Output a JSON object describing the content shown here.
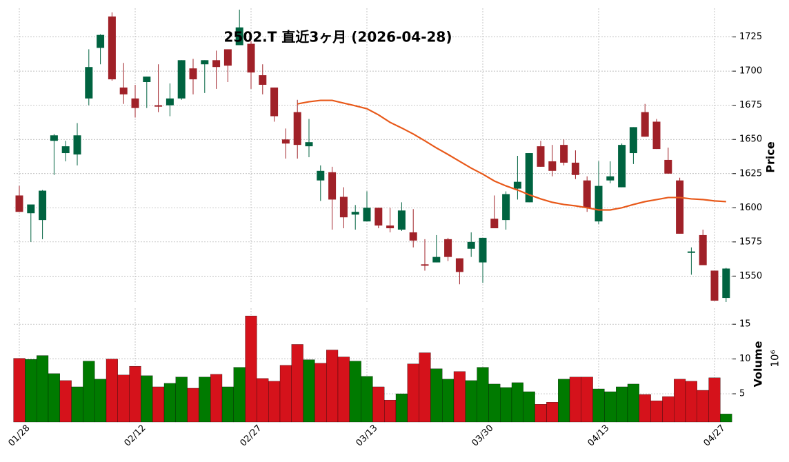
{
  "chart_data": {
    "type": "candlestick",
    "title": "2502.T 直近3ヶ月 (2026-04-28)",
    "ylabel": "Price",
    "categories": [
      "01/28",
      null,
      null,
      null,
      null,
      null,
      null,
      null,
      null,
      null,
      "02/12",
      null,
      null,
      null,
      null,
      null,
      null,
      null,
      null,
      null,
      "02/27",
      null,
      null,
      null,
      null,
      null,
      null,
      null,
      null,
      null,
      "03/13",
      null,
      null,
      null,
      null,
      null,
      null,
      null,
      null,
      null,
      "03/30",
      null,
      null,
      null,
      null,
      null,
      null,
      null,
      null,
      null,
      "04/13",
      null,
      null,
      null,
      null,
      null,
      null,
      null,
      null,
      null,
      "04/27",
      null
    ],
    "open": [
      1609,
      1596,
      1591,
      1649,
      1640,
      1639,
      1680,
      1717,
      1740,
      1688,
      1680,
      1692,
      1675,
      1675,
      1680,
      1702,
      1705,
      1708,
      1716,
      1719,
      1720,
      1697,
      1688,
      1650,
      1670,
      1645,
      1620,
      1626,
      1608,
      1595,
      1590,
      1600,
      1587,
      1584,
      1582,
      1558.6,
      1560,
      1577,
      1563,
      1570,
      1560,
      1592,
      1591,
      1614,
      1604,
      1645,
      1634,
      1646,
      1633,
      1620,
      1590,
      1620,
      1615,
      1640,
      1670,
      1663,
      1635,
      1620,
      1567,
      1580,
      1554,
      1534
    ],
    "high": [
      1616,
      1602,
      1613,
      1654,
      1649,
      1662,
      1716,
      1727,
      1743,
      1706,
      1690,
      1696,
      1705,
      1691,
      1708,
      1709,
      1708,
      1715,
      1716,
      1745,
      1722,
      1705,
      1688,
      1658,
      1679,
      1665,
      1631,
      1630,
      1615,
      1602,
      1612,
      1600,
      1600,
      1604,
      1599,
      1577,
      1580,
      1578,
      1563,
      1582,
      1578,
      1609,
      1612,
      1638,
      1640,
      1649,
      1646,
      1650,
      1642,
      1623,
      1634,
      1634,
      1647,
      1659,
      1676,
      1665,
      1644,
      1622,
      1571,
      1584,
      1554,
      1556
    ],
    "low": [
      1597,
      1575,
      1577,
      1624,
      1634,
      1631,
      1675,
      1705,
      1693,
      1676,
      1666,
      1673,
      1670,
      1667,
      1679,
      1683,
      1684,
      1687,
      1692,
      1719,
      1687,
      1683,
      1663,
      1636,
      1636,
      1637,
      1605,
      1584,
      1585,
      1584,
      1590,
      1585,
      1582,
      1583,
      1571,
      1554,
      1560,
      1561,
      1544,
      1564,
      1545,
      1585,
      1584,
      1606,
      1604,
      1630,
      1623,
      1631,
      1621,
      1597,
      1588,
      1618,
      1615,
      1632,
      1652,
      1643,
      1625,
      1581,
      1551,
      1558,
      1532,
      1531
    ],
    "close": [
      1597,
      1602.4,
      1612.5,
      1653,
      1645,
      1653,
      1703,
      1726.5,
      1694,
      1683,
      1673,
      1696,
      1674,
      1680,
      1708,
      1694,
      1708,
      1703,
      1704,
      1732,
      1699,
      1690,
      1667,
      1647,
      1646,
      1648,
      1627,
      1606,
      1593,
      1597,
      1600,
      1587,
      1585,
      1598,
      1576,
      1557.6,
      1564,
      1564,
      1553,
      1575,
      1578,
      1585,
      1610,
      1619,
      1640,
      1630,
      1627,
      1633,
      1624,
      1600,
      1616,
      1623,
      1646,
      1659,
      1652,
      1643,
      1625,
      1581,
      1568,
      1558,
      1532,
      1555.5
    ],
    "up_color": "#006340",
    "down_color": "#a02128",
    "moving_average": {
      "color": "#e8591a",
      "values": [
        null,
        null,
        null,
        null,
        null,
        null,
        null,
        null,
        null,
        null,
        null,
        null,
        null,
        null,
        null,
        null,
        null,
        null,
        null,
        null,
        null,
        null,
        null,
        null,
        1676,
        1677.6,
        1678.6,
        1678.6,
        1676.6,
        1674.6,
        1672.5,
        1668,
        1662.5,
        1658.4,
        1654,
        1649,
        1643.8,
        1639,
        1634,
        1629,
        1624.6,
        1619.6,
        1616,
        1613,
        1609.5,
        1606.5,
        1604,
        1602.4,
        1601.4,
        1600,
        1598.4,
        1598.4,
        1600,
        1602.4,
        1604.5,
        1606,
        1607.5,
        1607.5,
        1606.5,
        1606,
        1605,
        1604.5
      ]
    },
    "ylim": [
      1530,
      1746
    ],
    "yticks": [
      1550,
      1575,
      1600,
      1625,
      1650,
      1675,
      1700,
      1725
    ],
    "grid": true,
    "volume": {
      "type": "bar",
      "ylabel": "Volume",
      "offset_label": "10⁶",
      "values": [
        10.1,
        9.95,
        10.5,
        7.9,
        6.9,
        6.0,
        9.7,
        7.1,
        10.0,
        7.7,
        8.96,
        7.6,
        6.0,
        6.5,
        7.4,
        5.8,
        7.4,
        7.8,
        6.0,
        8.8,
        16.2,
        7.2,
        6.8,
        9.1,
        12.1,
        9.9,
        9.4,
        11.3,
        10.3,
        9.7,
        7.5,
        6.0,
        4.1,
        5.0,
        9.3,
        10.9,
        8.6,
        7.1,
        8.2,
        6.9,
        8.8,
        6.4,
        5.9,
        6.6,
        5.3,
        3.5,
        3.8,
        7.1,
        7.4,
        7.4,
        5.7,
        5.3,
        6.0,
        6.4,
        4.9,
        4.0,
        4.6,
        7.1,
        6.8,
        5.5,
        7.3,
        2.1
      ],
      "colors": [
        "#d5121b",
        "#007a00",
        "#007a00",
        "#007a00",
        "#d5121b",
        "#007a00",
        "#007a00",
        "#007a00",
        "#d5121b",
        "#d5121b",
        "#d5121b",
        "#007a00",
        "#d5121b",
        "#007a00",
        "#007a00",
        "#d5121b",
        "#007a00",
        "#d5121b",
        "#007a00",
        "#007a00",
        "#d5121b",
        "#d5121b",
        "#d5121b",
        "#d5121b",
        "#d5121b",
        "#007a00",
        "#d5121b",
        "#d5121b",
        "#d5121b",
        "#007a00",
        "#007a00",
        "#d5121b",
        "#d5121b",
        "#007a00",
        "#d5121b",
        "#d5121b",
        "#007a00",
        "#007a00",
        "#d5121b",
        "#007a00",
        "#007a00",
        "#007a00",
        "#007a00",
        "#007a00",
        "#007a00",
        "#d5121b",
        "#d5121b",
        "#007a00",
        "#d5121b",
        "#d5121b",
        "#007a00",
        "#007a00",
        "#007a00",
        "#007a00",
        "#d5121b",
        "#d5121b",
        "#d5121b",
        "#d5121b",
        "#d5121b",
        "#d5121b",
        "#d5121b",
        "#007a00"
      ],
      "ylim": [
        0.94,
        17.3
      ],
      "yticks": [
        5,
        10,
        15
      ]
    }
  }
}
